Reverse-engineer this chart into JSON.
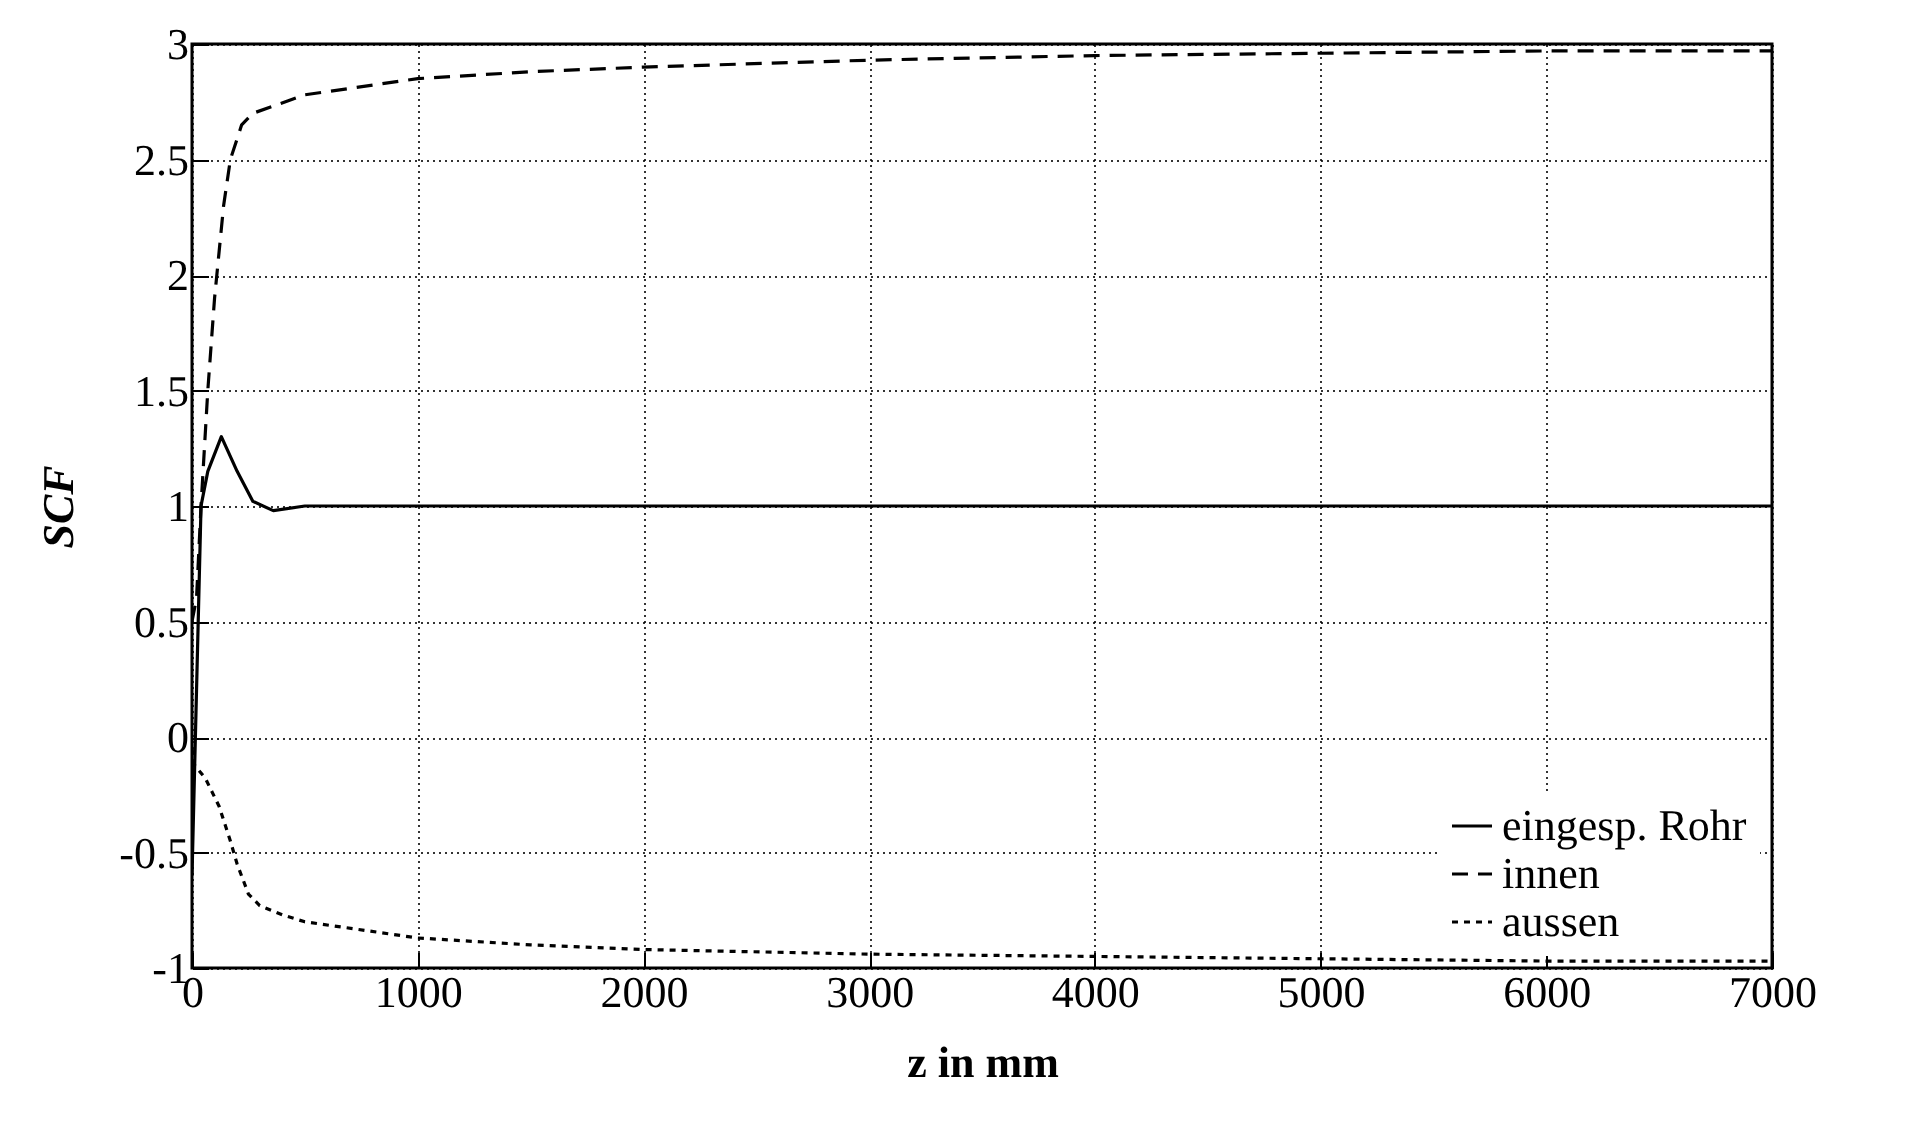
{
  "chart_data": {
    "type": "line",
    "xlabel": "z in mm",
    "ylabel": "SCF",
    "xlim": [
      0,
      7000
    ],
    "ylim": [
      -1,
      3
    ],
    "xticks": [
      0,
      1000,
      2000,
      3000,
      4000,
      5000,
      6000,
      7000
    ],
    "yticks": [
      -1,
      -0.5,
      0,
      0.5,
      1,
      1.5,
      2,
      2.5,
      3
    ],
    "grid": true,
    "legend": "bottom right",
    "series": [
      {
        "name": "eingesp. Rohr",
        "color": "#000000",
        "line_style": "solid",
        "x": [
          0,
          20,
          40,
          70,
          130,
          200,
          270,
          360,
          500,
          1000,
          2000,
          3000,
          4000,
          5000,
          6000,
          7000
        ],
        "values": [
          -0.6,
          0.2,
          1.0,
          1.15,
          1.3,
          1.15,
          1.02,
          0.98,
          1.0,
          1.0,
          1.0,
          1.0,
          1.0,
          1.0,
          1.0,
          1.0
        ]
      },
      {
        "name": "innen",
        "color": "#000000",
        "line_style": "dashed",
        "x": [
          0,
          20,
          40,
          70,
          100,
          140,
          170,
          220,
          270,
          500,
          1000,
          1500,
          2000,
          3000,
          4000,
          5000,
          6000,
          7000
        ],
        "values": [
          0.5,
          0.6,
          1.0,
          1.5,
          1.9,
          2.3,
          2.5,
          2.65,
          2.7,
          2.78,
          2.85,
          2.88,
          2.9,
          2.93,
          2.95,
          2.96,
          2.97,
          2.97
        ]
      },
      {
        "name": "aussen",
        "color": "#000000",
        "line_style": "dotted",
        "x": [
          0,
          10,
          60,
          120,
          170,
          200,
          250,
          300,
          400,
          500,
          1000,
          1500,
          2000,
          3000,
          4000,
          5000,
          6000,
          7000
        ],
        "values": [
          -0.05,
          -0.12,
          -0.18,
          -0.3,
          -0.45,
          -0.55,
          -0.68,
          -0.73,
          -0.77,
          -0.8,
          -0.87,
          -0.9,
          -0.92,
          -0.94,
          -0.95,
          -0.96,
          -0.97,
          -0.97
        ]
      }
    ]
  }
}
